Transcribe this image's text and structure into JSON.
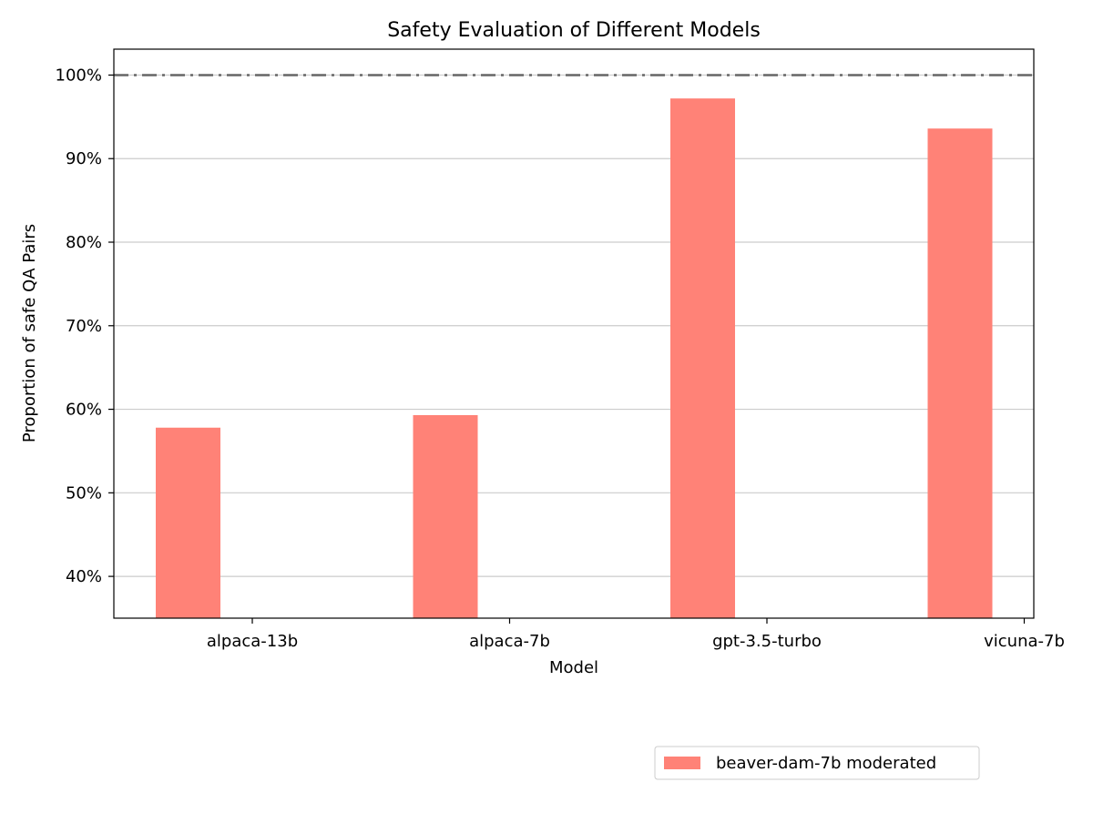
{
  "chart_data": {
    "type": "bar",
    "title": "Safety Evaluation of Different Models",
    "xlabel": "Model",
    "ylabel": "Proportion of safe QA Pairs",
    "categories": [
      "alpaca-13b",
      "alpaca-7b",
      "gpt-3.5-turbo",
      "vicuna-7b"
    ],
    "series": [
      {
        "name": "beaver-dam-7b moderated",
        "values": [
          57.8,
          59.3,
          97.2,
          93.6
        ],
        "color": "#ff8277"
      }
    ],
    "ylim": [
      35,
      103.1
    ],
    "yticks": [
      40,
      50,
      60,
      70,
      80,
      90,
      100
    ],
    "ytick_labels": [
      "40%",
      "50%",
      "60%",
      "70%",
      "80%",
      "90%",
      "100%"
    ],
    "reference_line": {
      "value": 100,
      "style": "dash-dot",
      "color": "#666666"
    },
    "grid": "horizontal",
    "legend": {
      "position": "below plot, right",
      "entries": [
        "beaver-dam-7b moderated"
      ]
    }
  }
}
